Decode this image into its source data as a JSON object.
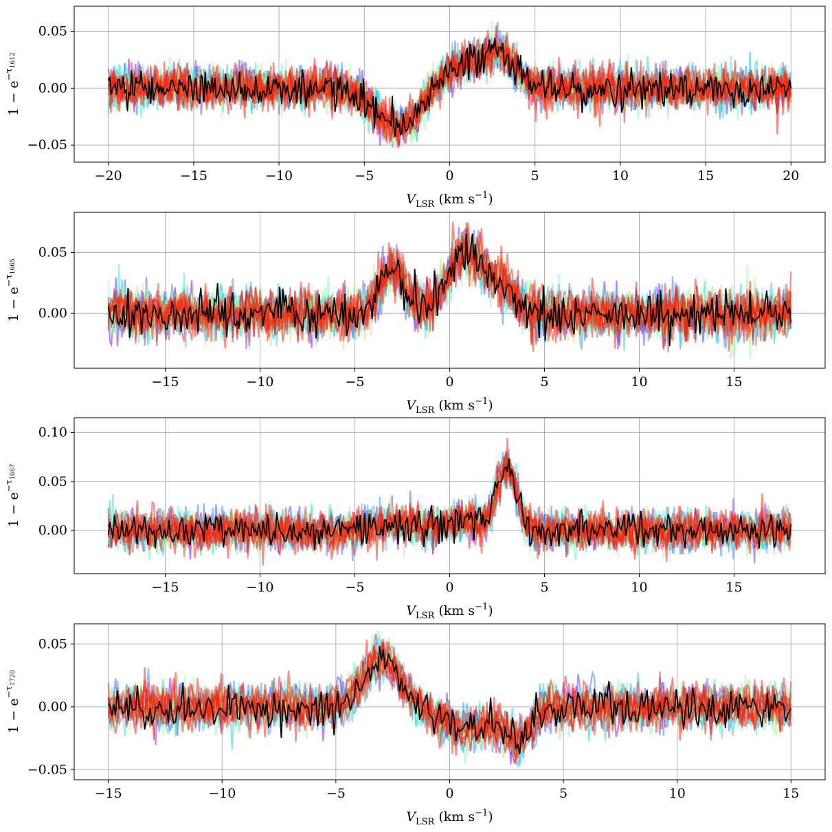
{
  "chart_data": [
    {
      "type": "line",
      "xlabel": "V_LSR (km s^-1)",
      "ylabel": "1 − e^{−τ1612}",
      "ylabel_main": "1 − e",
      "ylabel_sup": "−τ",
      "ylabel_sub": "1612",
      "xlim": [
        -22,
        22
      ],
      "ylim": [
        -0.065,
        0.072
      ],
      "xdata_range": [
        -20,
        20
      ],
      "xticks": [
        -20,
        -15,
        -10,
        -5,
        0,
        5,
        10,
        15,
        20
      ],
      "xtick_labels": [
        "−20",
        "−15",
        "−10",
        "−5",
        "0",
        "5",
        "10",
        "15",
        "20"
      ],
      "yticks": [
        -0.05,
        0.0,
        0.05
      ],
      "ytick_labels": [
        "−0.05",
        "0.00",
        "0.05"
      ],
      "grid": true,
      "noise_sigma": 0.009,
      "components": [
        {
          "center": -3.0,
          "amplitude": -0.035,
          "width": 1.3
        },
        {
          "center": 0.8,
          "amplitude": 0.02,
          "width": 1.4
        },
        {
          "center": 3.0,
          "amplitude": 0.025,
          "width": 0.9
        }
      ],
      "series": [
        {
          "role": "posterior-draws",
          "count": 18,
          "colormap": "rainbow",
          "alpha": 0.5
        },
        {
          "role": "observed",
          "color": "#000000"
        }
      ]
    },
    {
      "type": "line",
      "xlabel": "V_LSR (km s^-1)",
      "ylabel": "1 − e^{−τ1665}",
      "ylabel_main": "1 − e",
      "ylabel_sup": "−τ",
      "ylabel_sub": "1665",
      "xlim": [
        -19.8,
        19.8
      ],
      "ylim": [
        -0.045,
        0.083
      ],
      "xdata_range": [
        -18,
        18
      ],
      "xticks": [
        -15,
        -10,
        -5,
        0,
        5,
        10,
        15
      ],
      "xtick_labels": [
        "−15",
        "−10",
        "−5",
        "0",
        "5",
        "10",
        "15"
      ],
      "yticks": [
        0.0,
        0.05
      ],
      "ytick_labels": [
        "0.00",
        "0.05"
      ],
      "grid": true,
      "noise_sigma": 0.01,
      "components": [
        {
          "center": -3.0,
          "amplitude": 0.035,
          "width": 0.7
        },
        {
          "center": 0.8,
          "amplitude": 0.05,
          "width": 0.9
        },
        {
          "center": 2.8,
          "amplitude": 0.02,
          "width": 0.8
        }
      ],
      "series": [
        {
          "role": "posterior-draws",
          "count": 18,
          "colormap": "rainbow",
          "alpha": 0.5
        },
        {
          "role": "observed",
          "color": "#000000"
        }
      ]
    },
    {
      "type": "line",
      "xlabel": "V_LSR (km s^-1)",
      "ylabel": "1 − e^{−τ1667}",
      "ylabel_main": "1 − e",
      "ylabel_sup": "−τ",
      "ylabel_sub": "1667",
      "xlim": [
        -19.8,
        19.8
      ],
      "ylim": [
        -0.044,
        0.115
      ],
      "xdata_range": [
        -18,
        18
      ],
      "xticks": [
        -15,
        -10,
        -5,
        0,
        5,
        10,
        15
      ],
      "xtick_labels": [
        "−15",
        "−10",
        "−5",
        "0",
        "5",
        "10",
        "15"
      ],
      "yticks": [
        0.0,
        0.05,
        0.1
      ],
      "ytick_labels": [
        "0.00",
        "0.05",
        "0.10"
      ],
      "grid": true,
      "noise_sigma": 0.01,
      "components": [
        {
          "center": -3.0,
          "amplitude": 0.008,
          "width": 1.0
        },
        {
          "center": 0.8,
          "amplitude": 0.01,
          "width": 1.0
        },
        {
          "center": 3.0,
          "amplitude": 0.065,
          "width": 0.5
        }
      ],
      "series": [
        {
          "role": "posterior-draws",
          "count": 18,
          "colormap": "rainbow",
          "alpha": 0.5
        },
        {
          "role": "observed",
          "color": "#000000"
        }
      ]
    },
    {
      "type": "line",
      "xlabel": "V_LSR (km s^-1)",
      "ylabel": "1 − e^{−τ1720}",
      "ylabel_main": "1 − e",
      "ylabel_sup": "−τ",
      "ylabel_sub": "1720",
      "xlim": [
        -16.5,
        16.5
      ],
      "ylim": [
        -0.058,
        0.066
      ],
      "xdata_range": [
        -15,
        15
      ],
      "xticks": [
        -15,
        -10,
        -5,
        0,
        5,
        10,
        15
      ],
      "xtick_labels": [
        "−15",
        "−10",
        "−5",
        "0",
        "5",
        "10",
        "15"
      ],
      "yticks": [
        -0.05,
        0.0,
        0.05
      ],
      "ytick_labels": [
        "−0.05",
        "0.00",
        "0.05"
      ],
      "grid": true,
      "noise_sigma": 0.009,
      "components": [
        {
          "center": -3.0,
          "amplitude": 0.04,
          "width": 0.8
        },
        {
          "center": 0.8,
          "amplitude": -0.018,
          "width": 1.2
        },
        {
          "center": 3.0,
          "amplitude": -0.025,
          "width": 0.5
        }
      ],
      "series": [
        {
          "role": "posterior-draws",
          "count": 18,
          "colormap": "rainbow",
          "alpha": 0.5
        },
        {
          "role": "observed",
          "color": "#000000"
        }
      ]
    }
  ]
}
